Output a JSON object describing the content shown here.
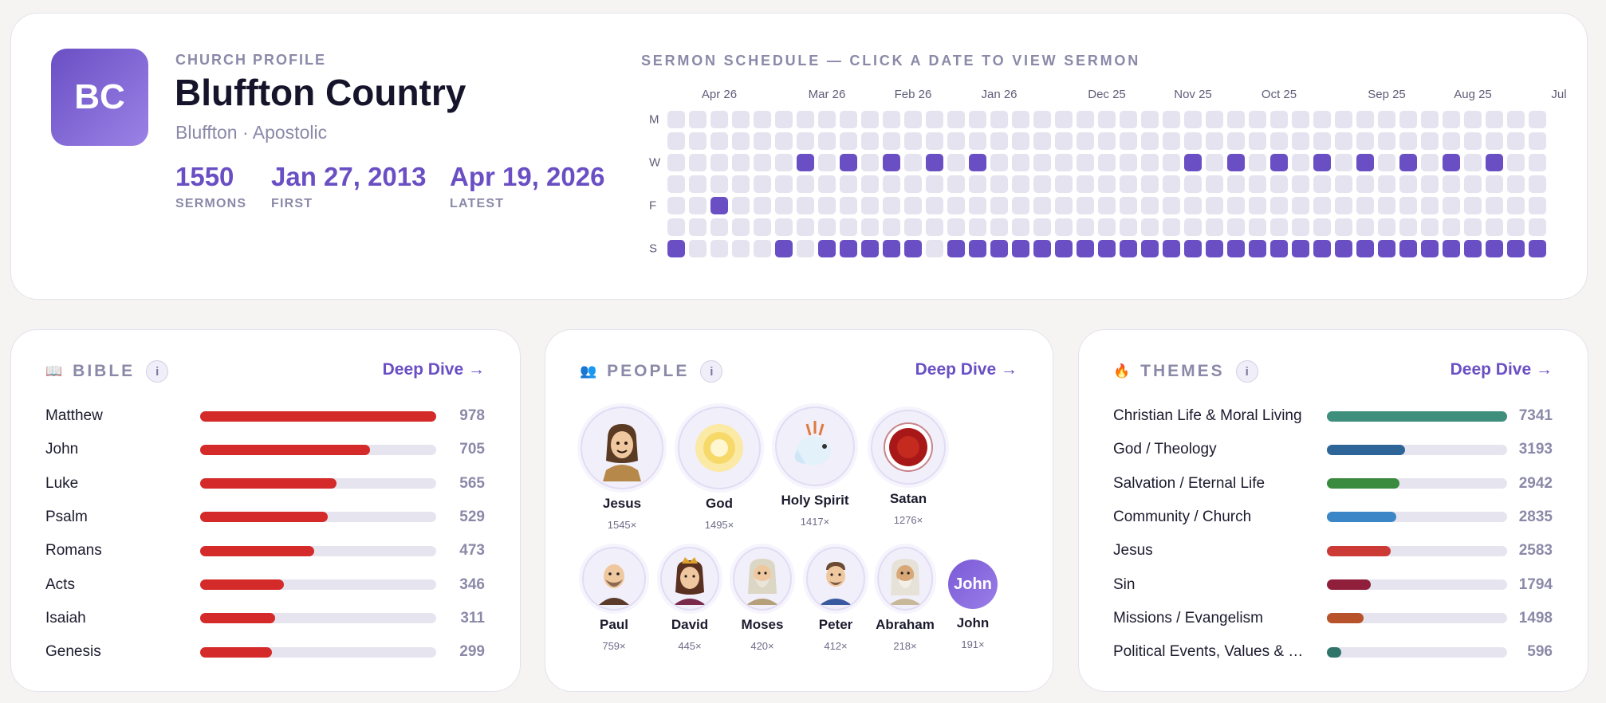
{
  "profile": {
    "logo_text": "BC",
    "eyebrow": "CHURCH PROFILE",
    "title": "Bluffton Country",
    "subtitle": "Bluffton · Apostolic",
    "stats": [
      {
        "value": "1550",
        "label": "SERMONS"
      },
      {
        "value": "Jan 27, 2013",
        "label": "FIRST"
      },
      {
        "value": "Apr 19, 2026",
        "label": "LATEST"
      }
    ]
  },
  "schedule": {
    "title": "SERMON SCHEDULE — CLICK A DATE TO VIEW SERMON",
    "month_labels": [
      {
        "text": "Apr 26",
        "week": 2
      },
      {
        "text": "Mar 26",
        "week": 7
      },
      {
        "text": "Feb 26",
        "week": 11
      },
      {
        "text": "Jan 26",
        "week": 15
      },
      {
        "text": "Dec 25",
        "week": 20
      },
      {
        "text": "Nov 25",
        "week": 24
      },
      {
        "text": "Oct 25",
        "week": 28
      },
      {
        "text": "Sep 25",
        "week": 33
      },
      {
        "text": "Aug 25",
        "week": 37
      },
      {
        "text": "Jul",
        "week": 41
      }
    ],
    "day_labels": [
      {
        "text": "M",
        "row": 0
      },
      {
        "text": "W",
        "row": 2
      },
      {
        "text": "F",
        "row": 4
      },
      {
        "text": "S",
        "row": 6
      }
    ],
    "weeks": 41,
    "rows": 7,
    "active": [
      [
        2,
        4
      ],
      [
        6,
        2
      ],
      [
        8,
        2
      ],
      [
        10,
        2
      ],
      [
        12,
        2
      ],
      [
        14,
        2
      ],
      [
        24,
        2
      ],
      [
        26,
        2
      ],
      [
        28,
        2
      ],
      [
        30,
        2
      ],
      [
        32,
        2
      ],
      [
        34,
        2
      ],
      [
        36,
        2
      ],
      [
        38,
        2
      ],
      [
        0,
        6
      ],
      [
        5,
        6
      ],
      [
        7,
        6
      ],
      [
        8,
        6
      ],
      [
        9,
        6
      ],
      [
        10,
        6
      ],
      [
        11,
        6
      ],
      [
        13,
        6
      ],
      [
        14,
        6
      ],
      [
        15,
        6
      ],
      [
        16,
        6
      ],
      [
        17,
        6
      ],
      [
        18,
        6
      ],
      [
        19,
        6
      ],
      [
        20,
        6
      ],
      [
        21,
        6
      ],
      [
        22,
        6
      ],
      [
        23,
        6
      ],
      [
        24,
        6
      ],
      [
        25,
        6
      ],
      [
        26,
        6
      ],
      [
        27,
        6
      ],
      [
        28,
        6
      ],
      [
        29,
        6
      ],
      [
        30,
        6
      ],
      [
        31,
        6
      ],
      [
        32,
        6
      ],
      [
        33,
        6
      ],
      [
        34,
        6
      ],
      [
        35,
        6
      ],
      [
        36,
        6
      ],
      [
        37,
        6
      ],
      [
        38,
        6
      ],
      [
        39,
        6
      ],
      [
        40,
        6
      ]
    ]
  },
  "bible": {
    "icon": "book-icon",
    "title": "BIBLE",
    "info": "i",
    "deep_dive": "Deep Dive →",
    "bar_color": "#d42a2a",
    "items": [
      {
        "name": "Matthew",
        "count": 978
      },
      {
        "name": "John",
        "count": 705
      },
      {
        "name": "Luke",
        "count": 565
      },
      {
        "name": "Psalm",
        "count": 529
      },
      {
        "name": "Romans",
        "count": 473
      },
      {
        "name": "Acts",
        "count": 346
      },
      {
        "name": "Isaiah",
        "count": 311
      },
      {
        "name": "Genesis",
        "count": 299
      }
    ]
  },
  "people": {
    "icon": "people-icon",
    "title": "PEOPLE",
    "info": "i",
    "deep_dive": "Deep Dive →",
    "items": [
      {
        "name": "Jesus",
        "count": "1545×",
        "avatar": "jesus-avatar"
      },
      {
        "name": "God",
        "count": "1495×",
        "avatar": "sun-avatar"
      },
      {
        "name": "Holy Spirit",
        "count": "1417×",
        "avatar": "dove-avatar"
      },
      {
        "name": "Satan",
        "count": "1276×",
        "avatar": "red-orb-avatar"
      },
      {
        "name": "Paul",
        "count": "759×",
        "avatar": "paul-avatar"
      },
      {
        "name": "David",
        "count": "445×",
        "avatar": "david-avatar"
      },
      {
        "name": "Moses",
        "count": "420×",
        "avatar": "moses-avatar"
      },
      {
        "name": "Peter",
        "count": "412×",
        "avatar": "peter-avatar"
      },
      {
        "name": "Abraham",
        "count": "218×",
        "avatar": "abraham-avatar"
      },
      {
        "name": "John",
        "count": "191×",
        "avatar": "John"
      }
    ]
  },
  "themes": {
    "icon": "fire-icon",
    "title": "THEMES",
    "info": "i",
    "deep_dive": "Deep Dive →",
    "items": [
      {
        "name": "Christian Life & Moral Living",
        "count": 7341,
        "color": "#3f8f7d"
      },
      {
        "name": "God / Theology",
        "count": 3193,
        "color": "#2e6598"
      },
      {
        "name": "Salvation / Eternal Life",
        "count": 2942,
        "color": "#3a8a3f"
      },
      {
        "name": "Community / Church",
        "count": 2835,
        "color": "#3a86c6"
      },
      {
        "name": "Jesus",
        "count": 2583,
        "color": "#cc3a36"
      },
      {
        "name": "Sin",
        "count": 1794,
        "color": "#8f1f3a"
      },
      {
        "name": "Missions / Evangelism",
        "count": 1498,
        "color": "#b8522a"
      },
      {
        "name": "Political Events, Values & …",
        "count": 596,
        "color": "#2f7468"
      }
    ]
  }
}
